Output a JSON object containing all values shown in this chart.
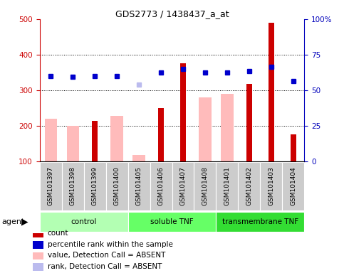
{
  "title": "GDS2773 / 1438437_a_at",
  "samples": [
    "GSM101397",
    "GSM101398",
    "GSM101399",
    "GSM101400",
    "GSM101405",
    "GSM101406",
    "GSM101407",
    "GSM101408",
    "GSM101401",
    "GSM101402",
    "GSM101403",
    "GSM101404"
  ],
  "groups": [
    {
      "name": "control",
      "start": 0,
      "end": 4,
      "color": "#b3ffb3"
    },
    {
      "name": "soluble TNF",
      "start": 4,
      "end": 8,
      "color": "#66ff66"
    },
    {
      "name": "transmembrane TNF",
      "start": 8,
      "end": 12,
      "color": "#33dd33"
    }
  ],
  "red_bars": [
    null,
    null,
    213,
    null,
    null,
    250,
    375,
    null,
    null,
    318,
    490,
    175
  ],
  "pink_bars": [
    220,
    200,
    null,
    228,
    118,
    null,
    null,
    280,
    290,
    null,
    null,
    null
  ],
  "blue_squares": [
    340,
    337,
    340,
    340,
    null,
    350,
    360,
    350,
    350,
    354,
    365,
    325
  ],
  "lavender_squares": [
    null,
    null,
    null,
    null,
    315,
    null,
    null,
    null,
    null,
    null,
    null,
    null
  ],
  "ylim_left": [
    100,
    500
  ],
  "ylim_right": [
    0,
    100
  ],
  "yticks_left": [
    100,
    200,
    300,
    400,
    500
  ],
  "yticks_right": [
    0,
    25,
    50,
    75,
    100
  ],
  "left_tick_color": "#cc0000",
  "right_tick_color": "#0000bb",
  "red_color": "#cc0000",
  "pink_color": "#ffbbbb",
  "blue_color": "#0000cc",
  "lavender_color": "#bbbbee",
  "grid_color": "#000000",
  "legend": [
    {
      "color": "#cc0000",
      "label": "count"
    },
    {
      "color": "#0000cc",
      "label": "percentile rank within the sample"
    },
    {
      "color": "#ffbbbb",
      "label": "value, Detection Call = ABSENT"
    },
    {
      "color": "#bbbbee",
      "label": "rank, Detection Call = ABSENT"
    }
  ]
}
